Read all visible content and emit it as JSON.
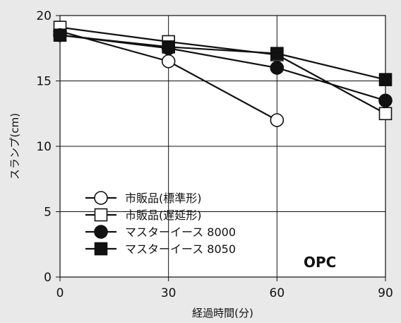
{
  "chart_data": {
    "type": "line",
    "xlabel": "経過時間(分)",
    "ylabel": "スランプ(cm)",
    "x": [
      0,
      30,
      60,
      90
    ],
    "xticks": [
      "0",
      "30",
      "60",
      "90"
    ],
    "yticks": [
      "0",
      "5",
      "10",
      "15",
      "20"
    ],
    "xlim": [
      0,
      90
    ],
    "ylim": [
      0,
      20
    ],
    "grid": true,
    "legend_position": "bottom-left",
    "annotation": "OPC",
    "series": [
      {
        "name": "市販品(標準形)",
        "marker": "circle-open",
        "values": [
          18.8,
          16.5,
          12.0,
          null
        ]
      },
      {
        "name": "市販品(遅延形)",
        "marker": "square-open",
        "values": [
          19.1,
          18.0,
          17.0,
          12.5
        ]
      },
      {
        "name": "マスターイース 8000",
        "marker": "circle-filled",
        "values": [
          18.5,
          17.5,
          16.0,
          13.5
        ]
      },
      {
        "name": "マスターイース 8050",
        "marker": "square-filled",
        "values": [
          18.5,
          17.6,
          17.1,
          15.1
        ]
      }
    ],
    "colors": {
      "background": "#e9e9e9",
      "plot": "#ffffff",
      "line": "#111111"
    }
  }
}
